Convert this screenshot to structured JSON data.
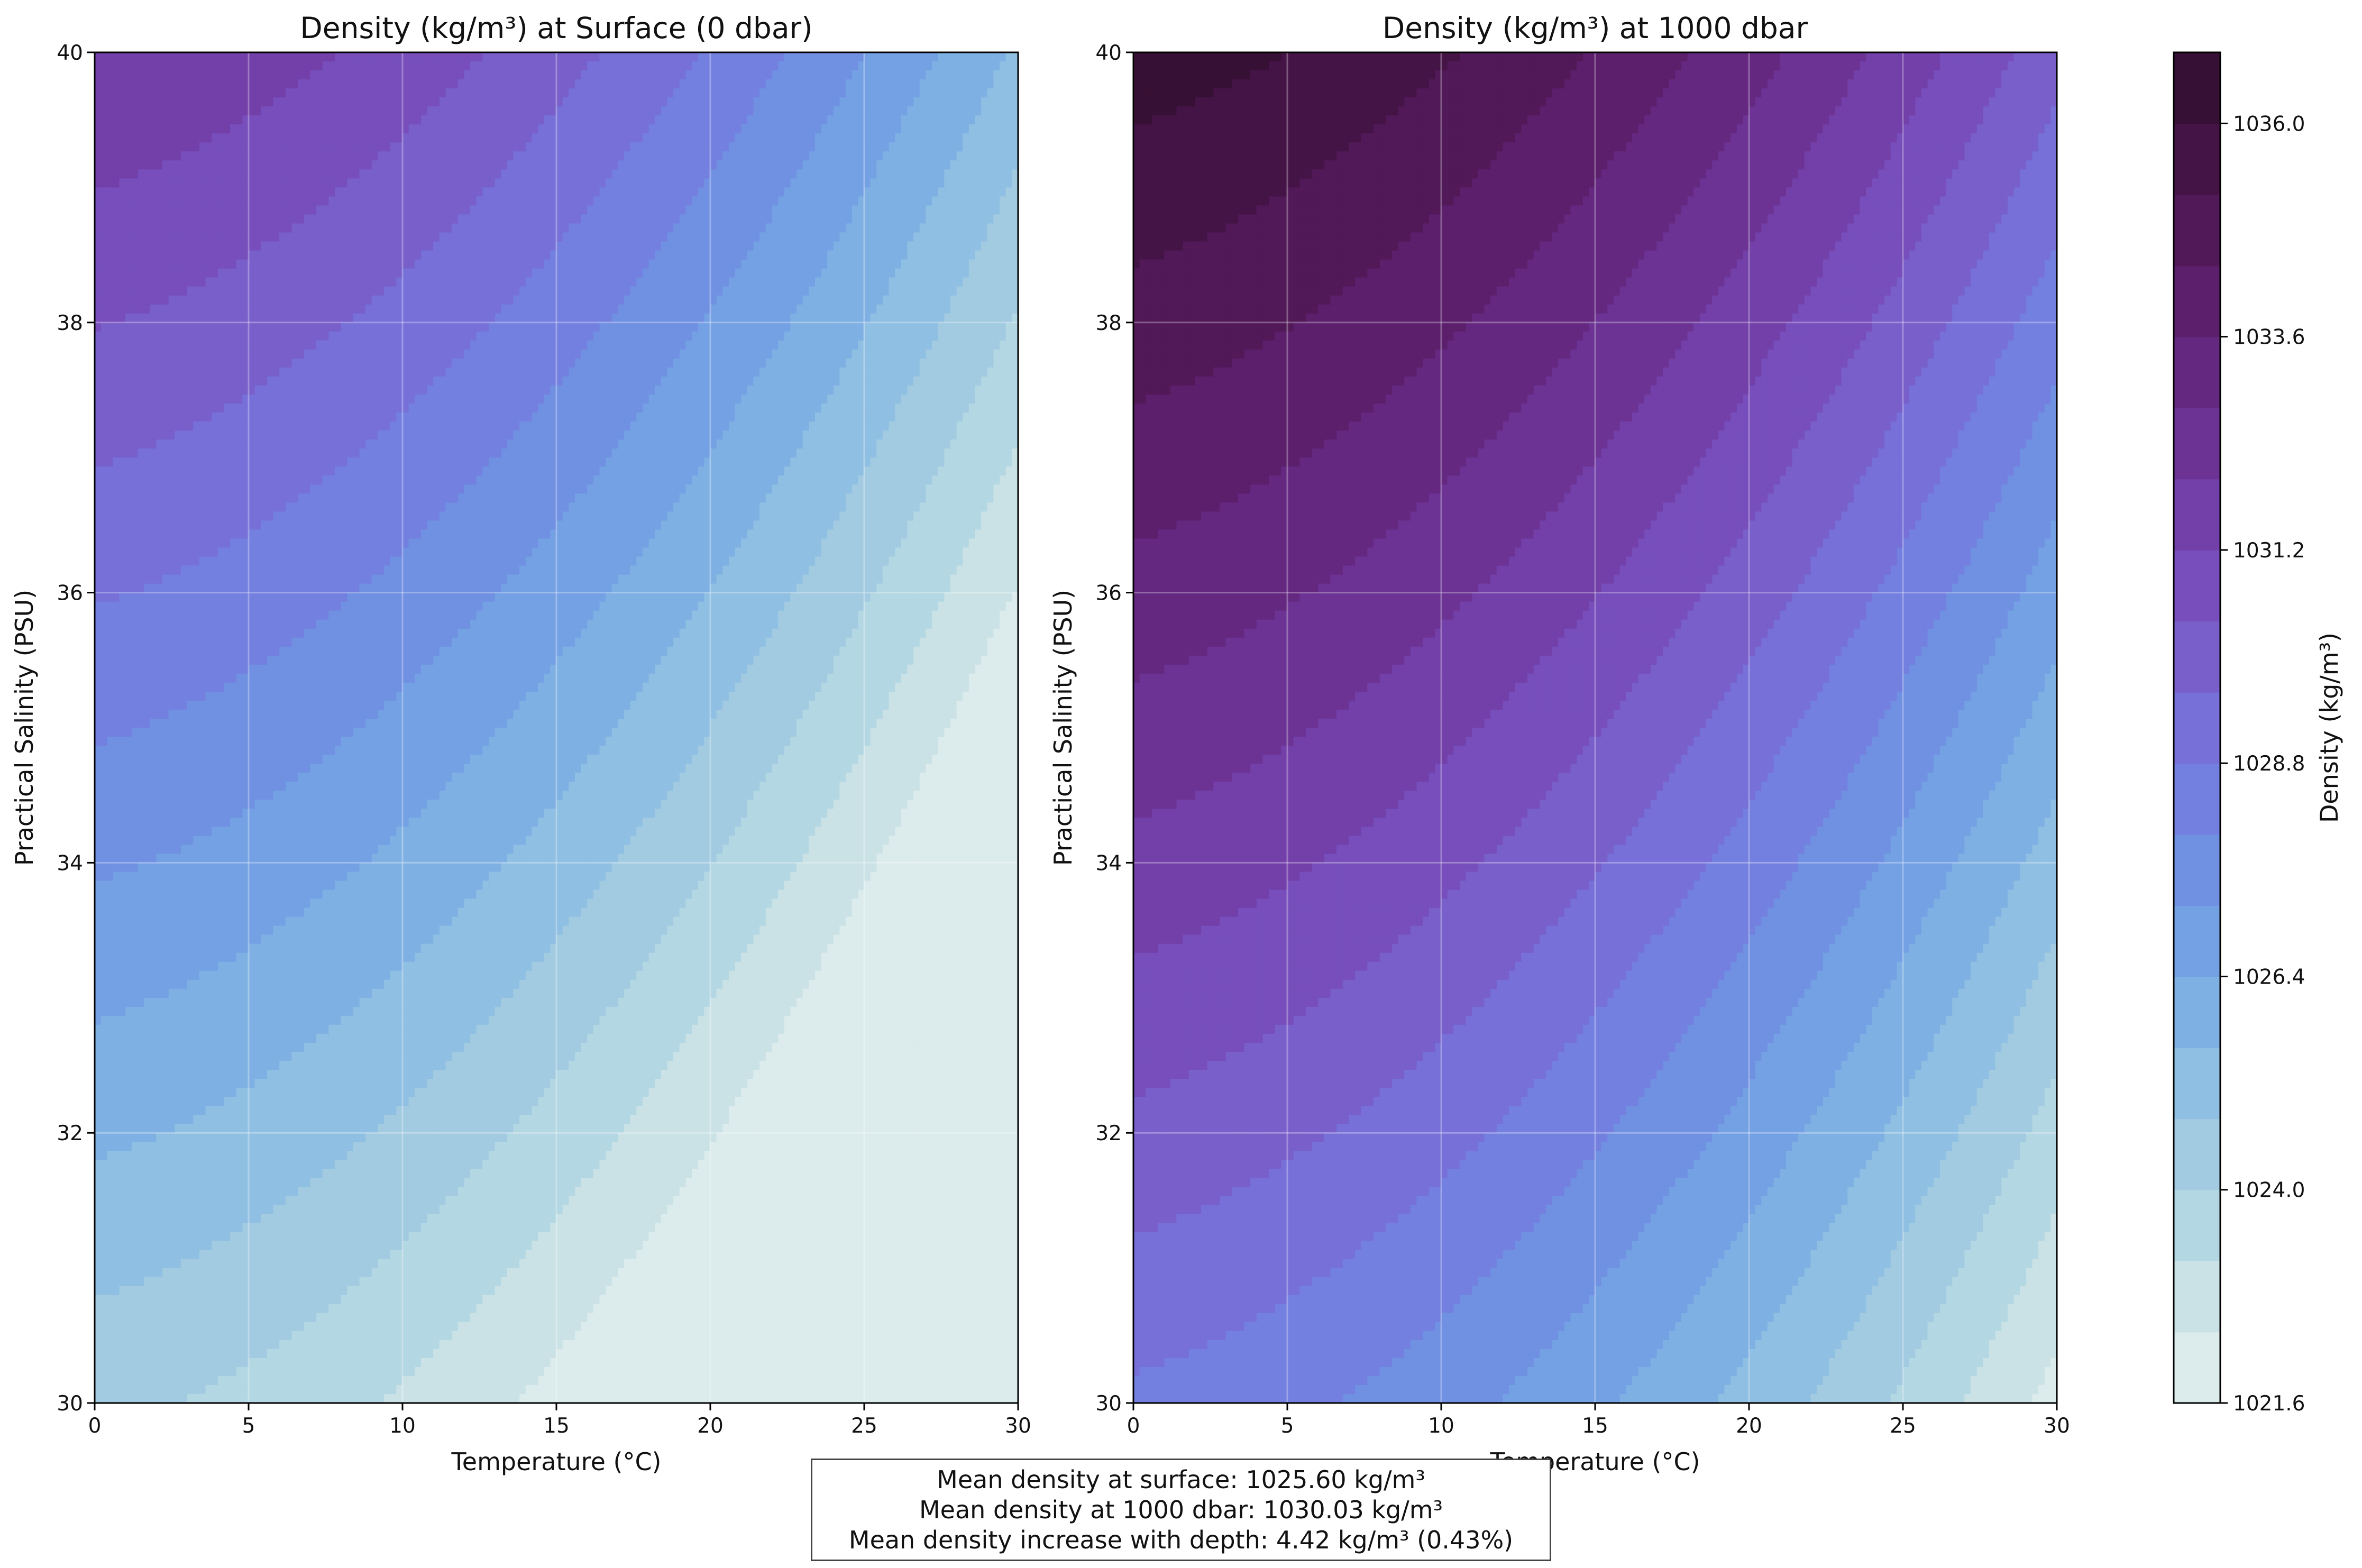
{
  "chart_data": [
    {
      "type": "heatmap",
      "subtype": "filled-contour",
      "title": "Density (kg/m³) at Surface (0 dbar)",
      "xlabel": "Temperature (°C)",
      "ylabel": "Practical Salinity (PSU)",
      "xlim": [
        0,
        30
      ],
      "ylim": [
        30,
        40
      ],
      "xticks": [
        "0",
        "5",
        "10",
        "15",
        "20",
        "25",
        "30"
      ],
      "yticks": [
        "30",
        "32",
        "34",
        "36",
        "38",
        "40"
      ],
      "pressure_dbar": 0,
      "grid": true,
      "levels_kg_m3": [
        1021.6,
        1036.8,
        0.8
      ]
    },
    {
      "type": "heatmap",
      "subtype": "filled-contour",
      "title": "Density (kg/m³) at 1000 dbar",
      "xlabel": "Temperature (°C)",
      "ylabel": "Practical Salinity (PSU)",
      "xlim": [
        0,
        30
      ],
      "ylim": [
        30,
        40
      ],
      "xticks": [
        "0",
        "5",
        "10",
        "15",
        "20",
        "25",
        "30"
      ],
      "yticks": [
        "30",
        "32",
        "34",
        "36",
        "38",
        "40"
      ],
      "pressure_dbar": 1000,
      "grid": true,
      "levels_kg_m3": [
        1021.6,
        1036.8,
        0.8
      ]
    }
  ],
  "colorbar": {
    "label": "Density (kg/m³)",
    "min": 1021.6,
    "max": 1036.8,
    "step": 0.8,
    "ticks": [
      "1021.6",
      "1024.0",
      "1026.4",
      "1028.8",
      "1031.2",
      "1033.6",
      "1036.0"
    ],
    "colors": [
      "#dcebeb",
      "#cae2e6",
      "#b3d7e3",
      "#a2cbe1",
      "#8fbfe2",
      "#7fb0e3",
      "#74a0e4",
      "#7090e2",
      "#7380df",
      "#7670d8",
      "#785fca",
      "#774ebb",
      "#7240a8",
      "#6c3394",
      "#642880",
      "#5b1f6c",
      "#511958",
      "#451446",
      "#371035"
    ]
  },
  "summary": {
    "line1": "Mean density at surface: 1025.60 kg/m³",
    "line2": "Mean density at 1000 dbar: 1030.03 kg/m³",
    "line3": "Mean density increase with depth: 4.42 kg/m³ (0.43%)"
  }
}
